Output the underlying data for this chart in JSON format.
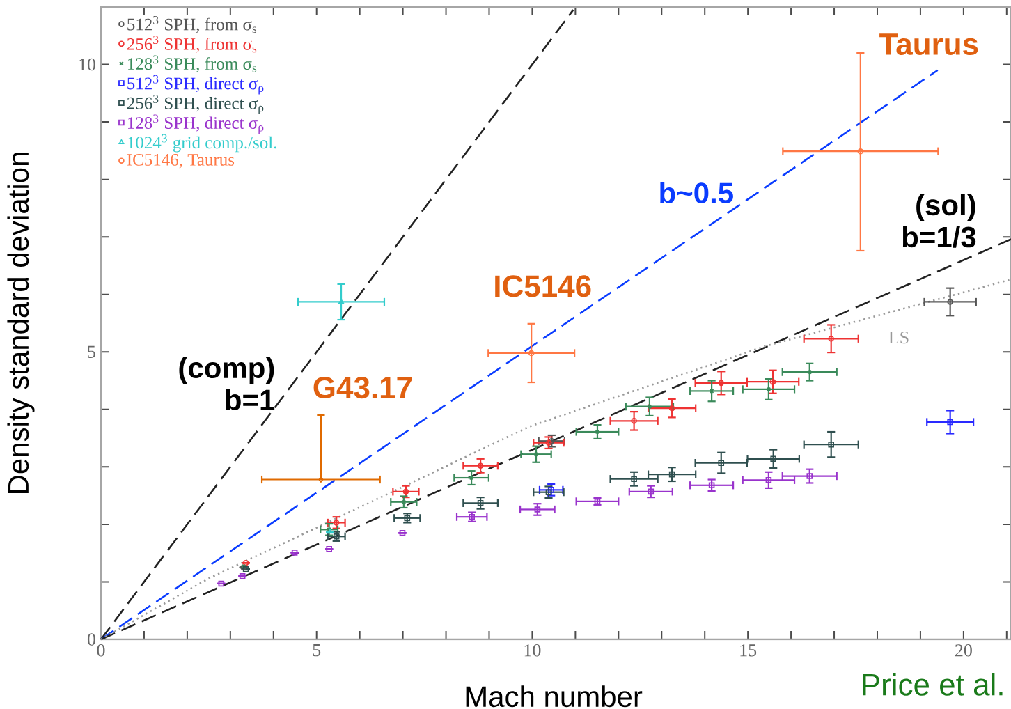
{
  "chart_data": {
    "type": "scatter",
    "xlabel": "Mach number",
    "ylabel": "Density standard deviation",
    "xlim": [
      0,
      21.1
    ],
    "ylim": [
      0,
      11
    ],
    "xticks": [
      0,
      {
        "value": 1,
        "label": null
      },
      {
        "value": 2,
        "label": null
      },
      {
        "value": 3,
        "label": null
      },
      {
        "value": 4,
        "label": null
      },
      5,
      {
        "value": 6,
        "label": null
      },
      {
        "value": 7,
        "label": null
      },
      {
        "value": 8,
        "label": null
      },
      {
        "value": 9,
        "label": null
      },
      10,
      {
        "value": 11,
        "label": null
      },
      {
        "value": 12,
        "label": null
      },
      {
        "value": 13,
        "label": null
      },
      {
        "value": 14,
        "label": null
      },
      15,
      {
        "value": 16,
        "label": null
      },
      {
        "value": 17,
        "label": null
      },
      {
        "value": 18,
        "label": null
      },
      {
        "value": 19,
        "label": null
      },
      20,
      {
        "value": 21,
        "label": null
      }
    ],
    "yticks": [
      0,
      {
        "value": 1,
        "label": null
      },
      {
        "value": 2,
        "label": null
      },
      {
        "value": 3,
        "label": null
      },
      {
        "value": 4,
        "label": null
      },
      5,
      {
        "value": 6,
        "label": null
      },
      {
        "value": 7,
        "label": null
      },
      {
        "value": 8,
        "label": null
      },
      {
        "value": 9,
        "label": null
      },
      10
    ],
    "legend": "top left",
    "series": [
      {
        "type": "line",
        "name": "(comp) b=1",
        "color": "#222222",
        "line_style": "dashed",
        "x": [
          0,
          10.95
        ],
        "values": [
          0,
          10.95
        ]
      },
      {
        "type": "line",
        "name": "b~0.5",
        "color": "#0a3cff",
        "line_style": "dashed",
        "x": [
          0,
          19.4
        ],
        "values": [
          0,
          9.9
        ]
      },
      {
        "type": "line",
        "name": "(sol) b=1/3",
        "color": "#222222",
        "line_style": "dashed",
        "x": [
          0,
          21.1
        ],
        "values": [
          0,
          6.96
        ]
      },
      {
        "type": "line",
        "name": "LS",
        "color": "#999999",
        "line_style": "dotted",
        "x": [
          0,
          2.5,
          5.25,
          9.93,
          15.4,
          21.1
        ],
        "values": [
          0,
          1.06,
          2.03,
          3.7,
          5.1,
          6.26
        ]
      },
      {
        "name": "512$^{3}$ SPH, from σ$_{s}$",
        "color": "#555555",
        "marker": "circle",
        "x": [
          3.3,
          10.45,
          19.69
        ],
        "values": [
          1.25,
          3.45,
          5.87
        ],
        "errors": [
          null,
          0.1,
          0.24
        ],
        "xerrors": [
          null,
          0.3,
          0.6
        ]
      },
      {
        "name": "256$^{3}$ SPH, from σ$_{s}$",
        "color": "#ee3333",
        "marker": "circle",
        "x": [
          3.36,
          5.46,
          7.07,
          8.8,
          10.38,
          12.36,
          13.24,
          14.38,
          15.58,
          16.93
        ],
        "values": [
          1.33,
          2.03,
          2.57,
          3.02,
          3.42,
          3.8,
          4.02,
          4.46,
          4.48,
          5.23
        ],
        "errors": [
          null,
          0.1,
          0.1,
          0.12,
          0.1,
          0.16,
          0.16,
          0.2,
          0.2,
          0.24
        ],
        "xerrors": [
          null,
          0.2,
          0.3,
          0.4,
          0.35,
          0.55,
          0.55,
          0.6,
          0.6,
          0.63
        ]
      },
      {
        "name": "128$^{3}$ SPH, from σ$_{s}$",
        "color": "#3a8a5a",
        "marker": "cross",
        "x": [
          3.31,
          5.29,
          7.02,
          8.59,
          10.09,
          11.51,
          12.72,
          14.16,
          15.48,
          16.43
        ],
        "values": [
          1.27,
          1.91,
          2.39,
          2.81,
          3.22,
          3.61,
          4.05,
          4.32,
          4.35,
          4.65
        ],
        "errors": [
          null,
          0.1,
          0.1,
          0.12,
          0.14,
          0.12,
          0.16,
          0.18,
          0.18,
          0.15
        ],
        "xerrors": [
          null,
          0.2,
          0.3,
          0.4,
          0.35,
          0.49,
          0.55,
          0.5,
          0.6,
          0.63
        ]
      },
      {
        "name": "512$^{3}$ SPH, direct σ$_{ρ}$",
        "color": "#2a2aff",
        "marker": "square",
        "x": [
          10.44,
          19.69
        ],
        "values": [
          2.6,
          3.78
        ],
        "errors": [
          0.1,
          0.2
        ],
        "xerrors": [
          0.27,
          0.54
        ]
      },
      {
        "name": "256$^{3}$ SPH, direct σ$_{ρ}$",
        "color": "#2f4f4f",
        "marker": "square",
        "x": [
          3.36,
          5.46,
          7.1,
          8.8,
          10.38,
          12.36,
          13.24,
          14.38,
          15.59,
          16.93
        ],
        "values": [
          1.22,
          1.79,
          2.11,
          2.37,
          2.56,
          2.79,
          2.87,
          3.07,
          3.14,
          3.39
        ],
        "errors": [
          null,
          0.08,
          0.08,
          0.1,
          0.1,
          0.12,
          0.12,
          0.18,
          0.16,
          0.22
        ],
        "xerrors": [
          null,
          0.2,
          0.3,
          0.4,
          0.35,
          0.55,
          0.55,
          0.6,
          0.6,
          0.63
        ]
      },
      {
        "name": "128$^{3}$ SPH, direct σ$_{ρ}$",
        "color": "#9933cc",
        "marker": "square",
        "x": [
          2.79,
          3.28,
          4.49,
          5.29,
          6.99,
          8.6,
          10.12,
          11.51,
          12.75,
          14.16,
          15.48,
          16.43
        ],
        "values": [
          0.97,
          1.1,
          1.51,
          1.57,
          1.85,
          2.13,
          2.26,
          2.4,
          2.57,
          2.68,
          2.77,
          2.84
        ],
        "errors": [
          null,
          null,
          null,
          null,
          null,
          0.08,
          0.1,
          0.06,
          0.1,
          0.1,
          0.14,
          0.12
        ],
        "xerrors": [
          null,
          null,
          null,
          null,
          null,
          0.35,
          0.4,
          0.49,
          0.5,
          0.5,
          0.6,
          0.63
        ]
      },
      {
        "name": "1024$^{3}$ grid comp./sol.",
        "color": "#33cccc",
        "marker": "triangle",
        "x": [
          5.31,
          5.57
        ],
        "values": [
          1.87,
          5.87
        ],
        "errors": [
          null,
          0.31
        ],
        "xerrors": [
          null,
          1.0
        ]
      },
      {
        "name": "IC5146, Taurus",
        "color": "#ff7744",
        "marker": "circle",
        "x": [
          9.98,
          17.61
        ],
        "values": [
          4.98,
          8.49
        ],
        "errors": [
          0.51,
          [
            6.76,
            10.2
          ]
        ],
        "xerrors": [
          1.0,
          1.8
        ]
      },
      {
        "color": "#e06a00",
        "marker": "diamond",
        "x": [
          5.1
        ],
        "values": [
          2.78
        ],
        "errors": [
          [
            2.78,
            3.9
          ]
        ],
        "xerrors": [
          1.37
        ]
      }
    ],
    "annotations": [
      {
        "text": "G43.17",
        "x": 5.1,
        "y": 2.78
      },
      {
        "text": "IC5146",
        "x": 9.98,
        "y": 4.98
      },
      "Taurus",
      "Price et al."
    ]
  }
}
